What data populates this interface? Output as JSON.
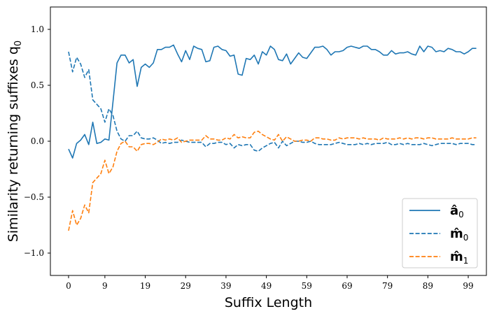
{
  "chart_data": {
    "type": "line",
    "xlabel": "Suffix Length",
    "ylabel": "Similarity returning suffixes q",
    "ylabel_sub": "0",
    "xlim": [
      -4.5,
      103.5
    ],
    "ylim": [
      -1.2,
      1.2
    ],
    "xticks": [
      0,
      9,
      19,
      29,
      39,
      49,
      59,
      69,
      79,
      89,
      99
    ],
    "yticks": [
      1.0,
      0.5,
      0.0,
      -0.5,
      -1.0
    ],
    "ytick_labels": [
      "1.0",
      "0.5",
      "0.0",
      "−0.5",
      "−1.0"
    ],
    "grid": false,
    "legend_position": "bottom-right",
    "series": [
      {
        "name": "â",
        "name_sub": "0",
        "color": "#1f77b4",
        "dash": "solid",
        "values": [
          -0.07,
          -0.15,
          -0.02,
          0.01,
          0.06,
          -0.03,
          0.17,
          -0.02,
          -0.01,
          0.02,
          0.01,
          0.35,
          0.7,
          0.77,
          0.77,
          0.7,
          0.73,
          0.49,
          0.66,
          0.69,
          0.66,
          0.7,
          0.82,
          0.82,
          0.84,
          0.84,
          0.86,
          0.78,
          0.71,
          0.81,
          0.73,
          0.85,
          0.83,
          0.82,
          0.71,
          0.72,
          0.84,
          0.85,
          0.82,
          0.81,
          0.76,
          0.77,
          0.6,
          0.59,
          0.74,
          0.73,
          0.77,
          0.69,
          0.8,
          0.77,
          0.85,
          0.82,
          0.73,
          0.72,
          0.78,
          0.69,
          0.74,
          0.79,
          0.75,
          0.74,
          0.79,
          0.84,
          0.84,
          0.85,
          0.82,
          0.77,
          0.8,
          0.8,
          0.81,
          0.84,
          0.85,
          0.84,
          0.83,
          0.85,
          0.85,
          0.82,
          0.82,
          0.8,
          0.77,
          0.77,
          0.81,
          0.78,
          0.79,
          0.79,
          0.8,
          0.78,
          0.77,
          0.85,
          0.8,
          0.85,
          0.84,
          0.8,
          0.81,
          0.8,
          0.83,
          0.82,
          0.8,
          0.8,
          0.78,
          0.8,
          0.83,
          0.83
        ],
        "values_note": ""
      },
      {
        "name": "m̂",
        "name_sub": "0",
        "color": "#1f77b4",
        "dash": "dashed",
        "values": [
          0.8,
          0.62,
          0.75,
          0.69,
          0.57,
          0.64,
          0.37,
          0.33,
          0.29,
          0.17,
          0.29,
          0.23,
          0.09,
          0.02,
          0.0,
          0.05,
          0.05,
          0.09,
          0.03,
          0.02,
          0.02,
          0.03,
          0.01,
          -0.02,
          -0.01,
          -0.02,
          -0.01,
          -0.01,
          0.01,
          0.0,
          -0.01,
          -0.01,
          -0.01,
          -0.01,
          -0.05,
          -0.02,
          -0.02,
          -0.01,
          -0.01,
          -0.03,
          -0.02,
          -0.06,
          -0.03,
          -0.04,
          -0.03,
          -0.03,
          -0.08,
          -0.09,
          -0.06,
          -0.04,
          -0.02,
          -0.01,
          -0.06,
          0.0,
          -0.04,
          -0.02,
          0.0,
          0.0,
          -0.01,
          -0.01,
          0.0,
          -0.02,
          -0.03,
          -0.03,
          -0.03,
          -0.03,
          -0.02,
          -0.01,
          -0.02,
          -0.03,
          -0.03,
          -0.03,
          -0.02,
          -0.03,
          -0.02,
          -0.03,
          -0.02,
          -0.02,
          -0.02,
          -0.01,
          -0.03,
          -0.03,
          -0.02,
          -0.03,
          -0.02,
          -0.03,
          -0.03,
          -0.03,
          -0.02,
          -0.03,
          -0.04,
          -0.03,
          -0.02,
          -0.02,
          -0.02,
          -0.02,
          -0.03,
          -0.02,
          -0.02,
          -0.02,
          -0.03,
          -0.03
        ],
        "values_note": ""
      },
      {
        "name": "m̂",
        "name_sub": "1",
        "color": "#ff7f0e",
        "dash": "dashed",
        "values": [
          -0.8,
          -0.62,
          -0.75,
          -0.69,
          -0.57,
          -0.64,
          -0.37,
          -0.33,
          -0.29,
          -0.17,
          -0.29,
          -0.23,
          -0.09,
          -0.02,
          0.0,
          -0.05,
          -0.05,
          -0.09,
          -0.03,
          -0.02,
          -0.02,
          -0.03,
          -0.01,
          0.02,
          0.01,
          0.02,
          0.01,
          0.03,
          -0.01,
          0.0,
          0.01,
          0.01,
          0.01,
          0.01,
          0.05,
          0.02,
          0.02,
          0.01,
          0.01,
          0.03,
          0.02,
          0.06,
          0.03,
          0.04,
          0.03,
          0.03,
          0.08,
          0.09,
          0.06,
          0.04,
          0.02,
          0.01,
          0.06,
          0.0,
          0.04,
          0.02,
          0.0,
          0.0,
          0.01,
          0.01,
          0.0,
          0.03,
          0.03,
          0.02,
          0.02,
          0.01,
          0.01,
          0.03,
          0.02,
          0.03,
          0.03,
          0.03,
          0.02,
          0.03,
          0.02,
          0.02,
          0.02,
          0.01,
          0.03,
          0.02,
          0.02,
          0.02,
          0.03,
          0.02,
          0.03,
          0.02,
          0.03,
          0.03,
          0.02,
          0.03,
          0.03,
          0.02,
          0.02,
          0.02,
          0.02,
          0.03,
          0.02,
          0.02,
          0.02,
          0.02,
          0.03,
          0.03
        ],
        "values_note": ""
      }
    ]
  }
}
